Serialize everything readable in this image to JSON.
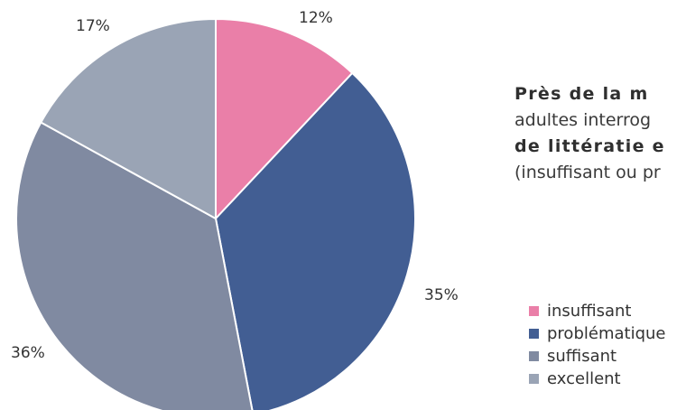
{
  "chart_data": {
    "type": "pie",
    "slices": [
      {
        "label": "insuffisant",
        "value": 12,
        "value_label": "12%",
        "color": "#ea7fa8"
      },
      {
        "label": "problématique",
        "value": 35,
        "value_label": "35%",
        "color": "#425e93"
      },
      {
        "label": "suffisant",
        "value": 36,
        "value_label": "36%",
        "color": "#808aa1"
      },
      {
        "label": "excellent",
        "value": 17,
        "value_label": "17%",
        "color": "#9aa4b5"
      }
    ],
    "start_angle": "12 o'clock",
    "direction": "clockwise",
    "legend_position": "right"
  },
  "caption": {
    "line1": "Près de la m",
    "line2": "adultes interrog",
    "line3": "de littératie e",
    "line4": "(insuffisant ou pr"
  },
  "legend": {
    "items": [
      {
        "label": "insuffisant",
        "color": "#ea7fa8"
      },
      {
        "label": "problématique",
        "color": "#425e93"
      },
      {
        "label": "suffisant",
        "color": "#808aa1"
      },
      {
        "label": "excellent",
        "color": "#9aa4b5"
      }
    ]
  }
}
